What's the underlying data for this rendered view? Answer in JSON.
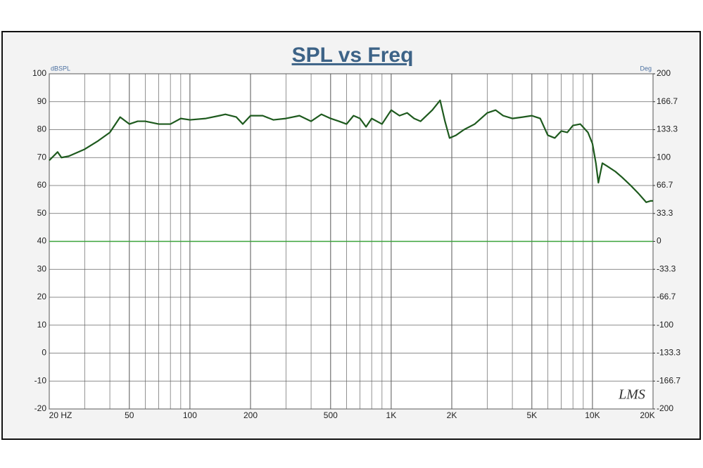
{
  "chart_data": {
    "type": "line",
    "title": "SPL vs Freq",
    "ylabel": "dBSPL",
    "y2label": "Deg",
    "annotations": [
      {
        "text": "LMS"
      }
    ],
    "xscale": "log",
    "xlim": [
      20,
      20000
    ],
    "xticks": [
      {
        "value": 20,
        "label": "20 HZ"
      },
      50,
      100,
      200,
      500,
      {
        "value": 1000,
        "label": "1K"
      },
      {
        "value": 2000,
        "label": "2K"
      },
      {
        "value": 5000,
        "label": "5K"
      },
      {
        "value": 10000,
        "label": "10K"
      },
      {
        "value": 20000,
        "label": "20K"
      }
    ],
    "xgrid_minor": [
      30,
      40,
      60,
      70,
      80,
      90,
      300,
      400,
      600,
      700,
      800,
      900,
      3000,
      4000,
      6000,
      7000,
      8000,
      9000
    ],
    "ylim": [
      -20,
      100
    ],
    "yticks": [
      -20,
      -10,
      0,
      10,
      20,
      30,
      40,
      50,
      60,
      70,
      80,
      90,
      100
    ],
    "y2lim": [
      -200,
      200
    ],
    "y2ticks": [
      -200,
      -166.7,
      -133.3,
      -100,
      -66.7,
      -33.3,
      0,
      33.3,
      66.7,
      100,
      133.3,
      166.7,
      200
    ],
    "grid": true,
    "series": [
      {
        "name": "SPL",
        "color": "#1e5a1e",
        "x": [
          20,
          22,
          23,
          25,
          30,
          35,
          40,
          45,
          50,
          55,
          60,
          70,
          80,
          90,
          100,
          120,
          140,
          150,
          170,
          183,
          200,
          230,
          260,
          300,
          350,
          400,
          450,
          500,
          550,
          600,
          650,
          700,
          750,
          800,
          900,
          1000,
          1100,
          1200,
          1300,
          1400,
          1600,
          1750,
          1850,
          1950,
          2100,
          2300,
          2600,
          3000,
          3300,
          3600,
          4000,
          4500,
          5000,
          5500,
          6000,
          6500,
          7000,
          7500,
          8000,
          8700,
          9500,
          10000,
          10400,
          10700,
          11200,
          11800,
          13000,
          14000,
          15500,
          17000,
          18500,
          19500,
          20000
        ],
        "values": [
          69,
          72,
          70,
          70.5,
          73,
          76,
          79,
          84.5,
          82,
          83,
          83,
          82,
          82,
          84,
          83.5,
          84,
          85,
          85.5,
          84.5,
          82,
          85,
          85,
          83.5,
          84,
          85,
          83,
          85.5,
          84,
          83,
          82,
          85,
          84,
          81,
          84,
          82,
          87,
          85,
          86,
          84,
          83,
          87,
          90.5,
          83,
          77,
          78,
          80,
          82,
          86,
          87,
          85,
          84,
          84.5,
          85,
          84,
          78,
          77,
          79.5,
          79,
          81.5,
          82,
          79,
          75,
          68,
          61,
          68,
          67,
          65,
          63,
          60,
          57,
          54,
          54.5,
          54.5
        ]
      },
      {
        "name": "Phase",
        "color": "#3aa33a",
        "axis": "y2",
        "x": [
          20,
          20000
        ],
        "values": [
          0,
          0
        ]
      }
    ]
  }
}
